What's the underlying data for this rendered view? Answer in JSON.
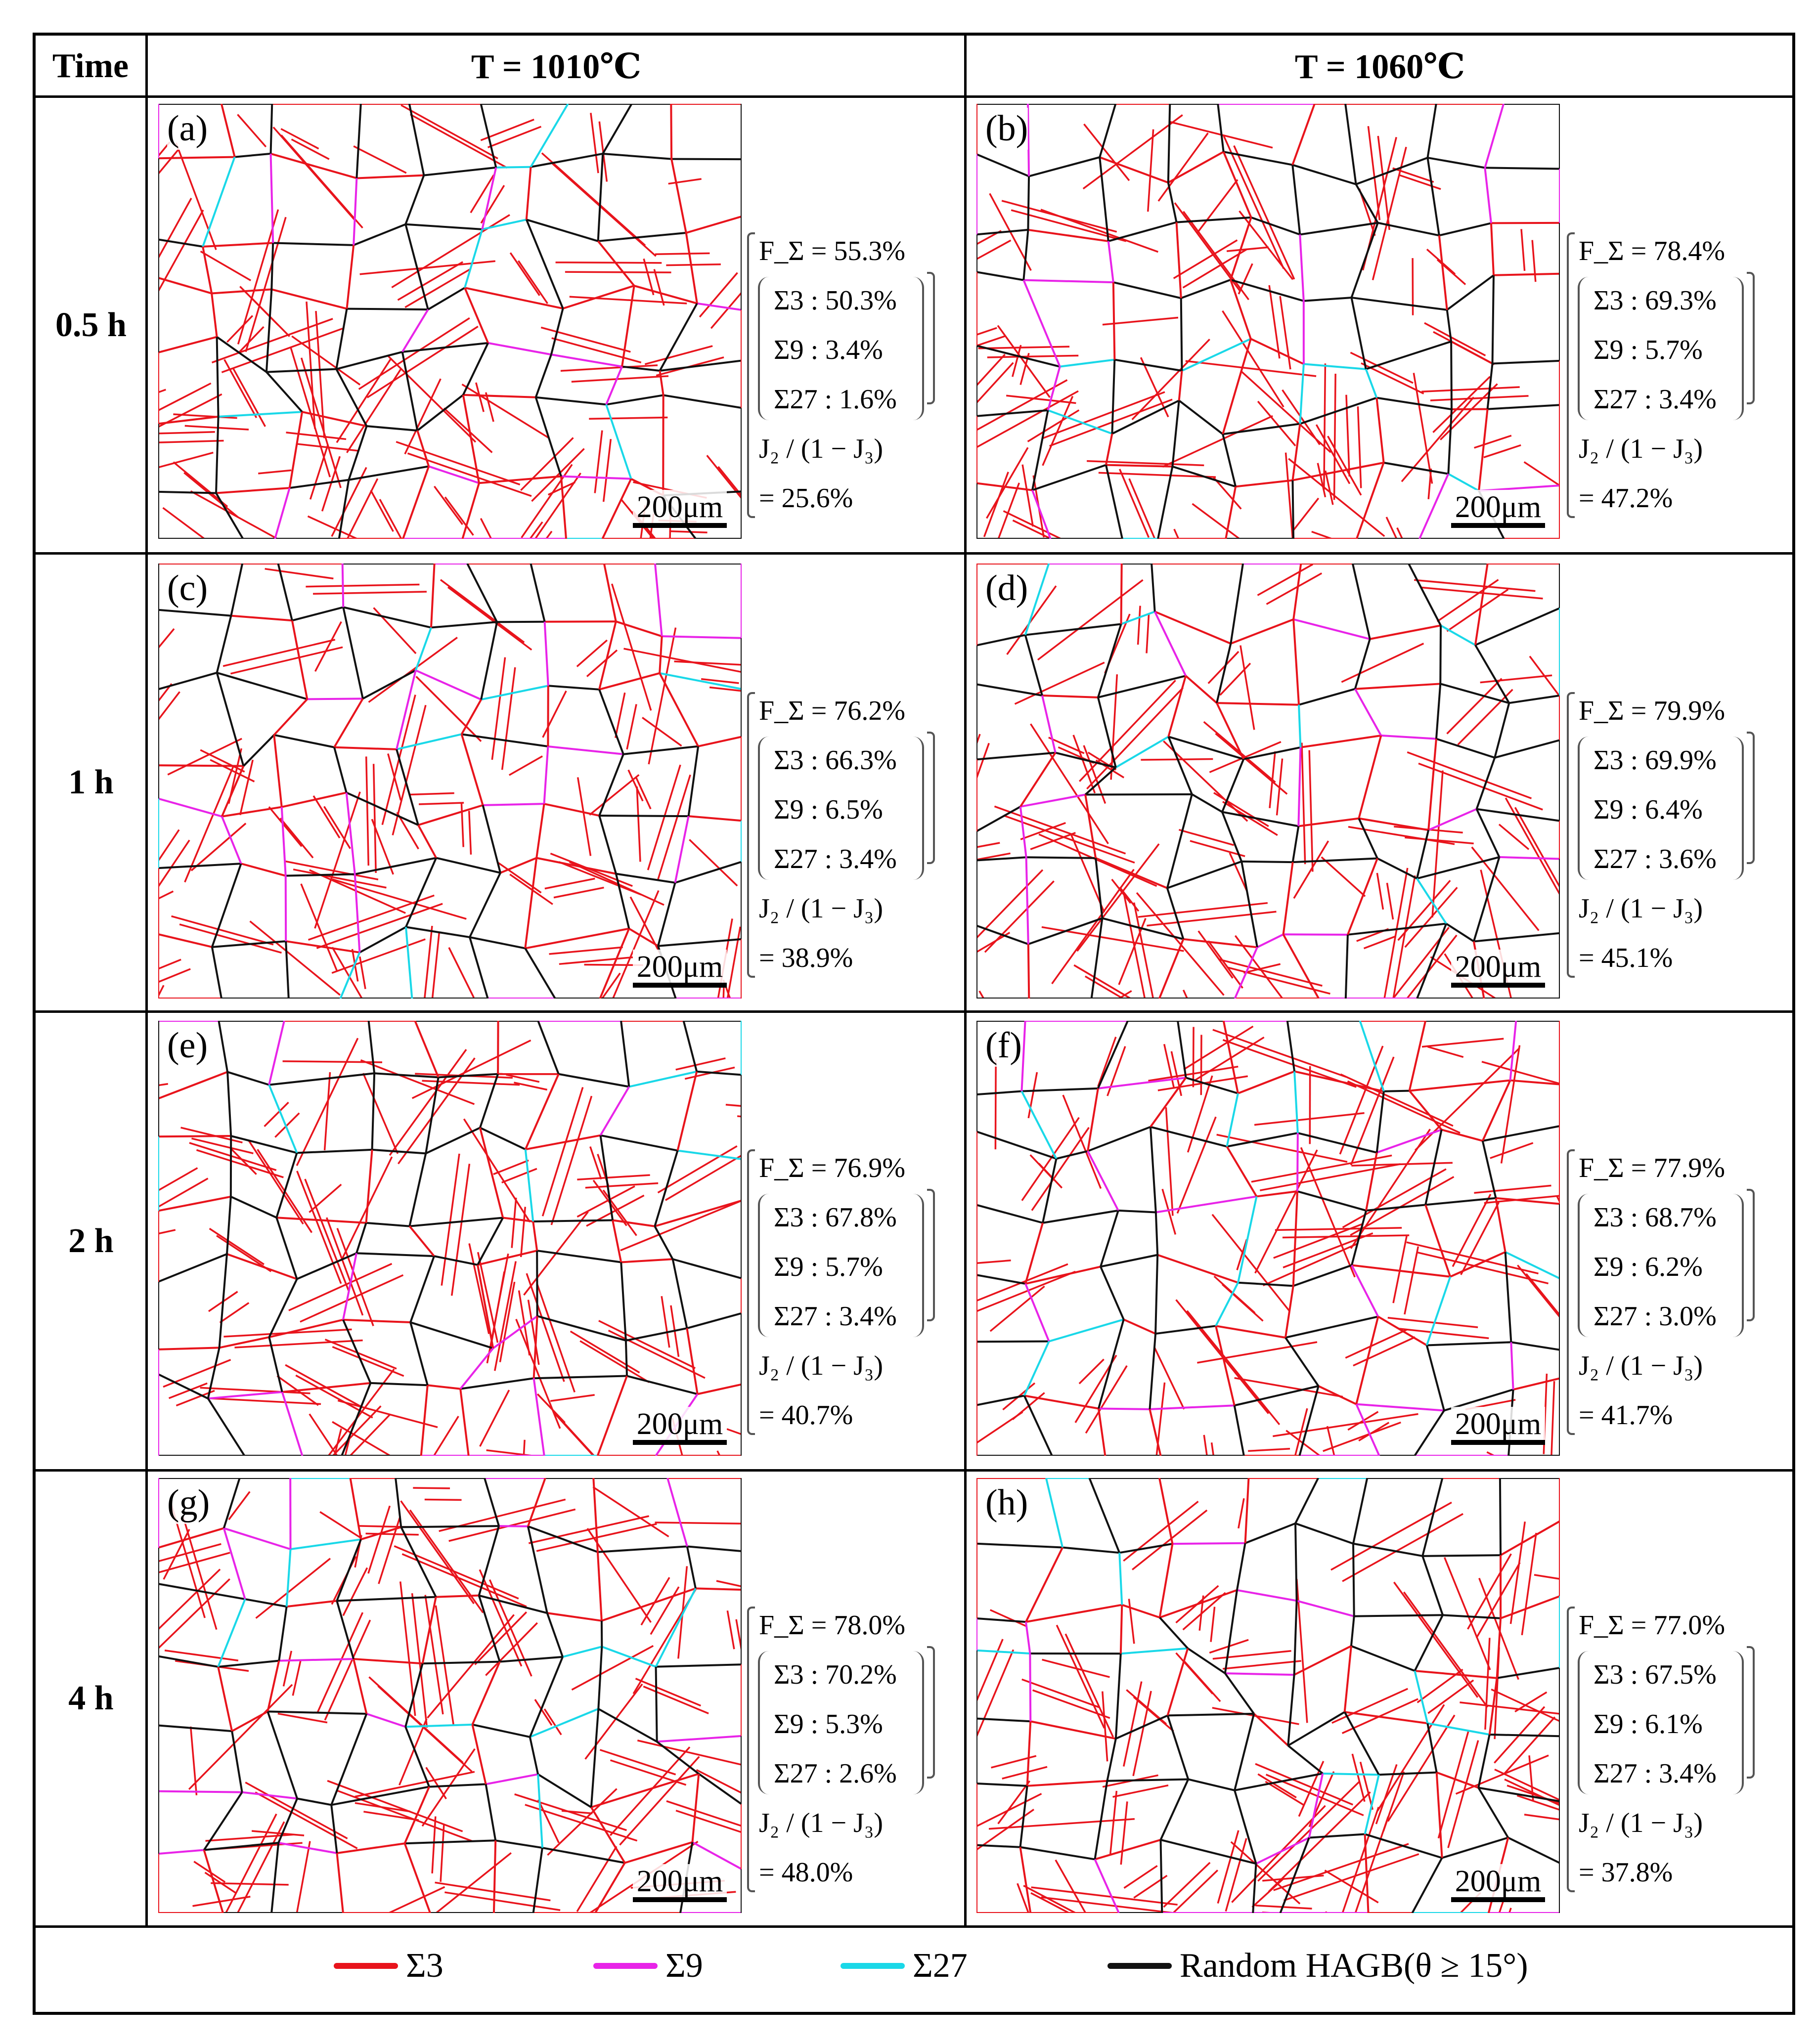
{
  "header": {
    "time_label": "Time",
    "col1": "T = 1010℃",
    "col2": "T = 1060℃"
  },
  "rows": [
    {
      "time": "0.5 h"
    },
    {
      "time": "1 h"
    },
    {
      "time": "2 h"
    },
    {
      "time": "4 h"
    }
  ],
  "panels": [
    {
      "label": "(a)",
      "scale": "200μm",
      "f_sigma": "F_Σ = 55.3%",
      "s3": "Σ3 : 50.3%",
      "s9": "Σ9 : 3.4%",
      "s27": "Σ27 : 1.6%",
      "j_label": "J₂ / (1 − J₃)",
      "j_value": "= 25.6%"
    },
    {
      "label": "(b)",
      "scale": "200μm",
      "f_sigma": "F_Σ = 78.4%",
      "s3": "Σ3 : 69.3%",
      "s9": "Σ9 : 5.7%",
      "s27": "Σ27 : 3.4%",
      "j_label": "J₂ / (1 − J₃)",
      "j_value": "= 47.2%"
    },
    {
      "label": "(c)",
      "scale": "200μm",
      "f_sigma": "F_Σ = 76.2%",
      "s3": "Σ3 : 66.3%",
      "s9": "Σ9 : 6.5%",
      "s27": "Σ27 : 3.4%",
      "j_label": "J₂ / (1 − J₃)",
      "j_value": "= 38.9%"
    },
    {
      "label": "(d)",
      "scale": "200μm",
      "f_sigma": "F_Σ = 79.9%",
      "s3": "Σ3 : 69.9%",
      "s9": "Σ9 : 6.4%",
      "s27": "Σ27 : 3.6%",
      "j_label": "J₂ / (1 − J₃)",
      "j_value": "= 45.1%"
    },
    {
      "label": "(e)",
      "scale": "200μm",
      "f_sigma": "F_Σ = 76.9%",
      "s3": "Σ3 : 67.8%",
      "s9": "Σ9 : 5.7%",
      "s27": "Σ27 : 3.4%",
      "j_label": "J₂ / (1 − J₃)",
      "j_value": "= 40.7%"
    },
    {
      "label": "(f)",
      "scale": "200μm",
      "f_sigma": "F_Σ = 77.9%",
      "s3": "Σ3 : 68.7%",
      "s9": "Σ9 : 6.2%",
      "s27": "Σ27 : 3.0%",
      "j_label": "J₂ / (1 − J₃)",
      "j_value": "= 41.7%"
    },
    {
      "label": "(g)",
      "scale": "200μm",
      "f_sigma": "F_Σ = 78.0%",
      "s3": "Σ3 : 70.2%",
      "s9": "Σ9 : 5.3%",
      "s27": "Σ27 : 2.6%",
      "j_label": "J₂ / (1 − J₃)",
      "j_value": "= 48.0%"
    },
    {
      "label": "(h)",
      "scale": "200μm",
      "f_sigma": "F_Σ = 77.0%",
      "s3": "Σ3 : 67.5%",
      "s9": "Σ9 : 6.1%",
      "s27": "Σ27 : 3.4%",
      "j_label": "J₂ / (1 − J₃)",
      "j_value": "= 37.8%"
    }
  ],
  "legend": [
    {
      "label": "Σ3",
      "color": "#e8141c"
    },
    {
      "label": "Σ9",
      "color": "#e824e8"
    },
    {
      "label": "Σ27",
      "color": "#1ad8e8"
    },
    {
      "label": "Random HAGB(θ ≥ 15°)",
      "color": "#111111"
    }
  ],
  "colors": {
    "sigma3": "#e8141c",
    "sigma9": "#e824e8",
    "sigma27": "#1ad8e8",
    "hagb": "#111111"
  }
}
